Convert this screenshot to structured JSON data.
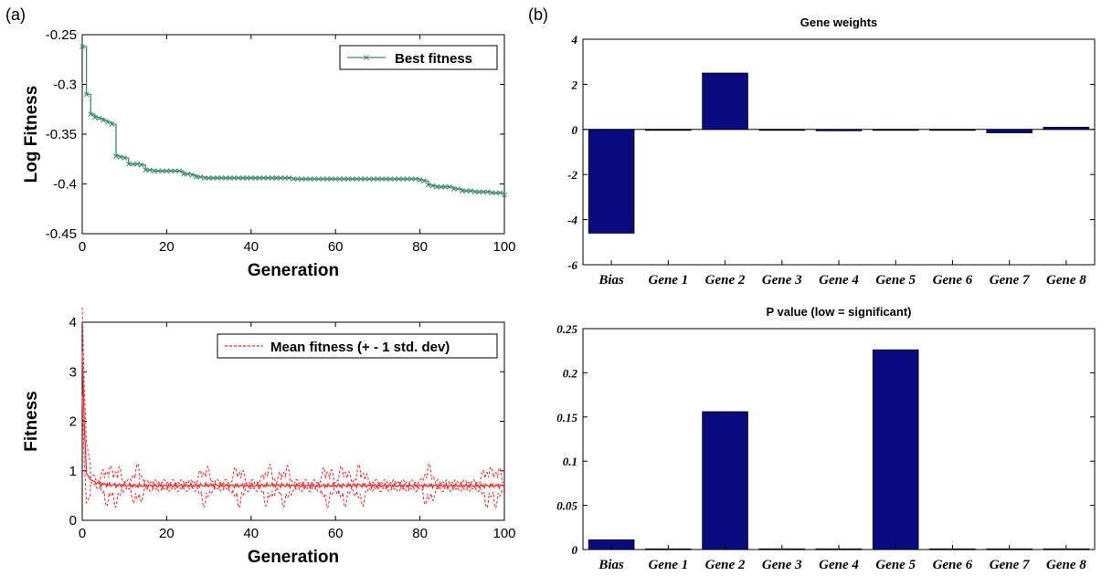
{
  "panels": {
    "left": "(a)",
    "right": "(b)"
  },
  "chart_data": [
    {
      "type": "line",
      "ylabel": "Log Fitness",
      "xlabel": "Generation",
      "xlim": [
        0,
        100
      ],
      "ylim": [
        -0.45,
        -0.25
      ],
      "xticks": [
        "0",
        "20",
        "40",
        "60",
        "80",
        "100"
      ],
      "yticks": [
        "-0.45",
        "-0.4",
        "-0.35",
        "-0.3",
        "-0.25"
      ],
      "legend": "top-right",
      "series": [
        {
          "name": "Best fitness",
          "color": "#3a8a6a",
          "x": [
            0,
            1,
            2,
            3,
            4,
            5,
            6,
            7,
            8,
            9,
            10,
            11,
            12,
            13,
            14,
            15,
            16,
            17,
            18,
            19,
            20,
            21,
            22,
            23,
            24,
            25,
            26,
            27,
            28,
            29,
            30,
            31,
            32,
            33,
            34,
            35,
            36,
            37,
            38,
            39,
            40,
            41,
            42,
            43,
            44,
            45,
            46,
            47,
            48,
            49,
            50,
            51,
            52,
            53,
            54,
            55,
            56,
            57,
            58,
            59,
            60,
            61,
            62,
            63,
            64,
            65,
            66,
            67,
            68,
            69,
            70,
            71,
            72,
            73,
            74,
            75,
            76,
            77,
            78,
            79,
            80,
            81,
            82,
            83,
            84,
            85,
            86,
            87,
            88,
            89,
            90,
            91,
            92,
            93,
            94,
            95,
            96,
            97,
            98,
            99,
            100
          ],
          "y": [
            -0.262,
            -0.31,
            -0.33,
            -0.333,
            -0.334,
            -0.336,
            -0.338,
            -0.34,
            -0.372,
            -0.373,
            -0.374,
            -0.38,
            -0.38,
            -0.38,
            -0.381,
            -0.386,
            -0.386,
            -0.387,
            -0.387,
            -0.387,
            -0.387,
            -0.387,
            -0.387,
            -0.387,
            -0.39,
            -0.39,
            -0.391,
            -0.393,
            -0.393,
            -0.394,
            -0.394,
            -0.394,
            -0.394,
            -0.394,
            -0.394,
            -0.394,
            -0.394,
            -0.394,
            -0.394,
            -0.394,
            -0.394,
            -0.394,
            -0.394,
            -0.394,
            -0.394,
            -0.394,
            -0.394,
            -0.394,
            -0.394,
            -0.394,
            -0.395,
            -0.395,
            -0.395,
            -0.395,
            -0.395,
            -0.395,
            -0.395,
            -0.395,
            -0.395,
            -0.395,
            -0.395,
            -0.395,
            -0.395,
            -0.395,
            -0.395,
            -0.395,
            -0.395,
            -0.395,
            -0.395,
            -0.395,
            -0.395,
            -0.395,
            -0.395,
            -0.395,
            -0.395,
            -0.395,
            -0.395,
            -0.395,
            -0.395,
            -0.395,
            -0.396,
            -0.397,
            -0.401,
            -0.402,
            -0.403,
            -0.403,
            -0.403,
            -0.403,
            -0.405,
            -0.405,
            -0.407,
            -0.407,
            -0.407,
            -0.408,
            -0.408,
            -0.408,
            -0.408,
            -0.409,
            -0.409,
            -0.409,
            -0.411
          ]
        }
      ],
      "title": ""
    },
    {
      "type": "line",
      "ylabel": "Fitness",
      "xlabel": "Generation",
      "xlim": [
        0,
        100
      ],
      "ylim": [
        0,
        4
      ],
      "xticks": [
        "0",
        "20",
        "40",
        "60",
        "80",
        "100"
      ],
      "yticks": [
        "0",
        "1",
        "2",
        "3",
        "4"
      ],
      "legend": "top-right",
      "series": [
        {
          "name": "Mean fitness (+ - 1 std. dev)",
          "color": "#ff2020",
          "x": [
            0,
            0.5,
            1,
            2,
            3,
            4,
            6,
            8,
            10,
            13,
            16,
            20,
            25,
            30,
            35,
            40,
            45,
            50,
            55,
            60,
            65,
            70,
            75,
            80,
            85,
            90,
            95,
            100
          ],
          "mean": [
            3.4,
            1.9,
            0.95,
            0.82,
            0.78,
            0.74,
            0.72,
            0.71,
            0.71,
            0.7,
            0.7,
            0.7,
            0.7,
            0.71,
            0.7,
            0.7,
            0.71,
            0.7,
            0.7,
            0.7,
            0.71,
            0.7,
            0.7,
            0.7,
            0.7,
            0.7,
            0.7,
            0.7
          ]
        }
      ],
      "oscillation_centers": [
        6,
        8,
        13,
        29,
        37,
        44,
        48,
        58,
        62,
        66,
        82,
        96,
        98
      ],
      "title": ""
    },
    {
      "type": "bar",
      "title": "Gene weights",
      "categories": [
        "Bias",
        "Gene 1",
        "Gene 2",
        "Gene 3",
        "Gene 4",
        "Gene 5",
        "Gene 6",
        "Gene 7",
        "Gene 8"
      ],
      "values": [
        -4.6,
        0,
        2.5,
        0,
        -0.06,
        0,
        0,
        -0.15,
        0.1
      ],
      "ylim": [
        -6,
        4
      ],
      "yticks": [
        "-6",
        "-4",
        "-2",
        "0",
        "2",
        "4"
      ],
      "color": "#0b0b80"
    },
    {
      "type": "bar",
      "title": "P value (low = significant)",
      "categories": [
        "Bias",
        "Gene 1",
        "Gene 2",
        "Gene 3",
        "Gene 4",
        "Gene 5",
        "Gene 6",
        "Gene 7",
        "Gene 8"
      ],
      "values": [
        0.011,
        0.0008,
        0.156,
        0.0008,
        0.0008,
        0.226,
        0.0008,
        0.0008,
        0.0008
      ],
      "ylim": [
        0,
        0.25
      ],
      "yticks": [
        "0",
        "0.05",
        "0.1",
        "0.15",
        "0.2",
        "0.25"
      ],
      "color": "#0b0b80"
    }
  ]
}
